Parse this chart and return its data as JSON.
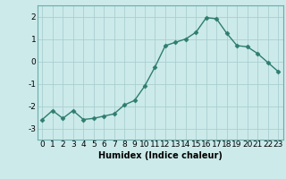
{
  "x": [
    0,
    1,
    2,
    3,
    4,
    5,
    6,
    7,
    8,
    9,
    10,
    11,
    12,
    13,
    14,
    15,
    16,
    17,
    18,
    19,
    20,
    21,
    22,
    23
  ],
  "y": [
    -2.6,
    -2.2,
    -2.55,
    -2.2,
    -2.6,
    -2.55,
    -2.45,
    -2.35,
    -1.95,
    -1.75,
    -1.1,
    -0.25,
    0.7,
    0.85,
    1.0,
    1.3,
    1.95,
    1.9,
    1.25,
    0.7,
    0.65,
    0.35,
    -0.05,
    -0.45
  ],
  "line_color": "#2e7d6e",
  "marker": "D",
  "marker_size": 2.5,
  "bg_color": "#cceaea",
  "grid_color": "#aacfcf",
  "xlabel": "Humidex (Indice chaleur)",
  "ylim": [
    -3.5,
    2.5
  ],
  "xlim": [
    -0.5,
    23.5
  ],
  "yticks": [
    -3,
    -2,
    -1,
    0,
    1,
    2
  ],
  "xticks": [
    0,
    1,
    2,
    3,
    4,
    5,
    6,
    7,
    8,
    9,
    10,
    11,
    12,
    13,
    14,
    15,
    16,
    17,
    18,
    19,
    20,
    21,
    22,
    23
  ],
  "label_fontsize": 7,
  "tick_fontsize": 6.5,
  "line_width": 1.0
}
